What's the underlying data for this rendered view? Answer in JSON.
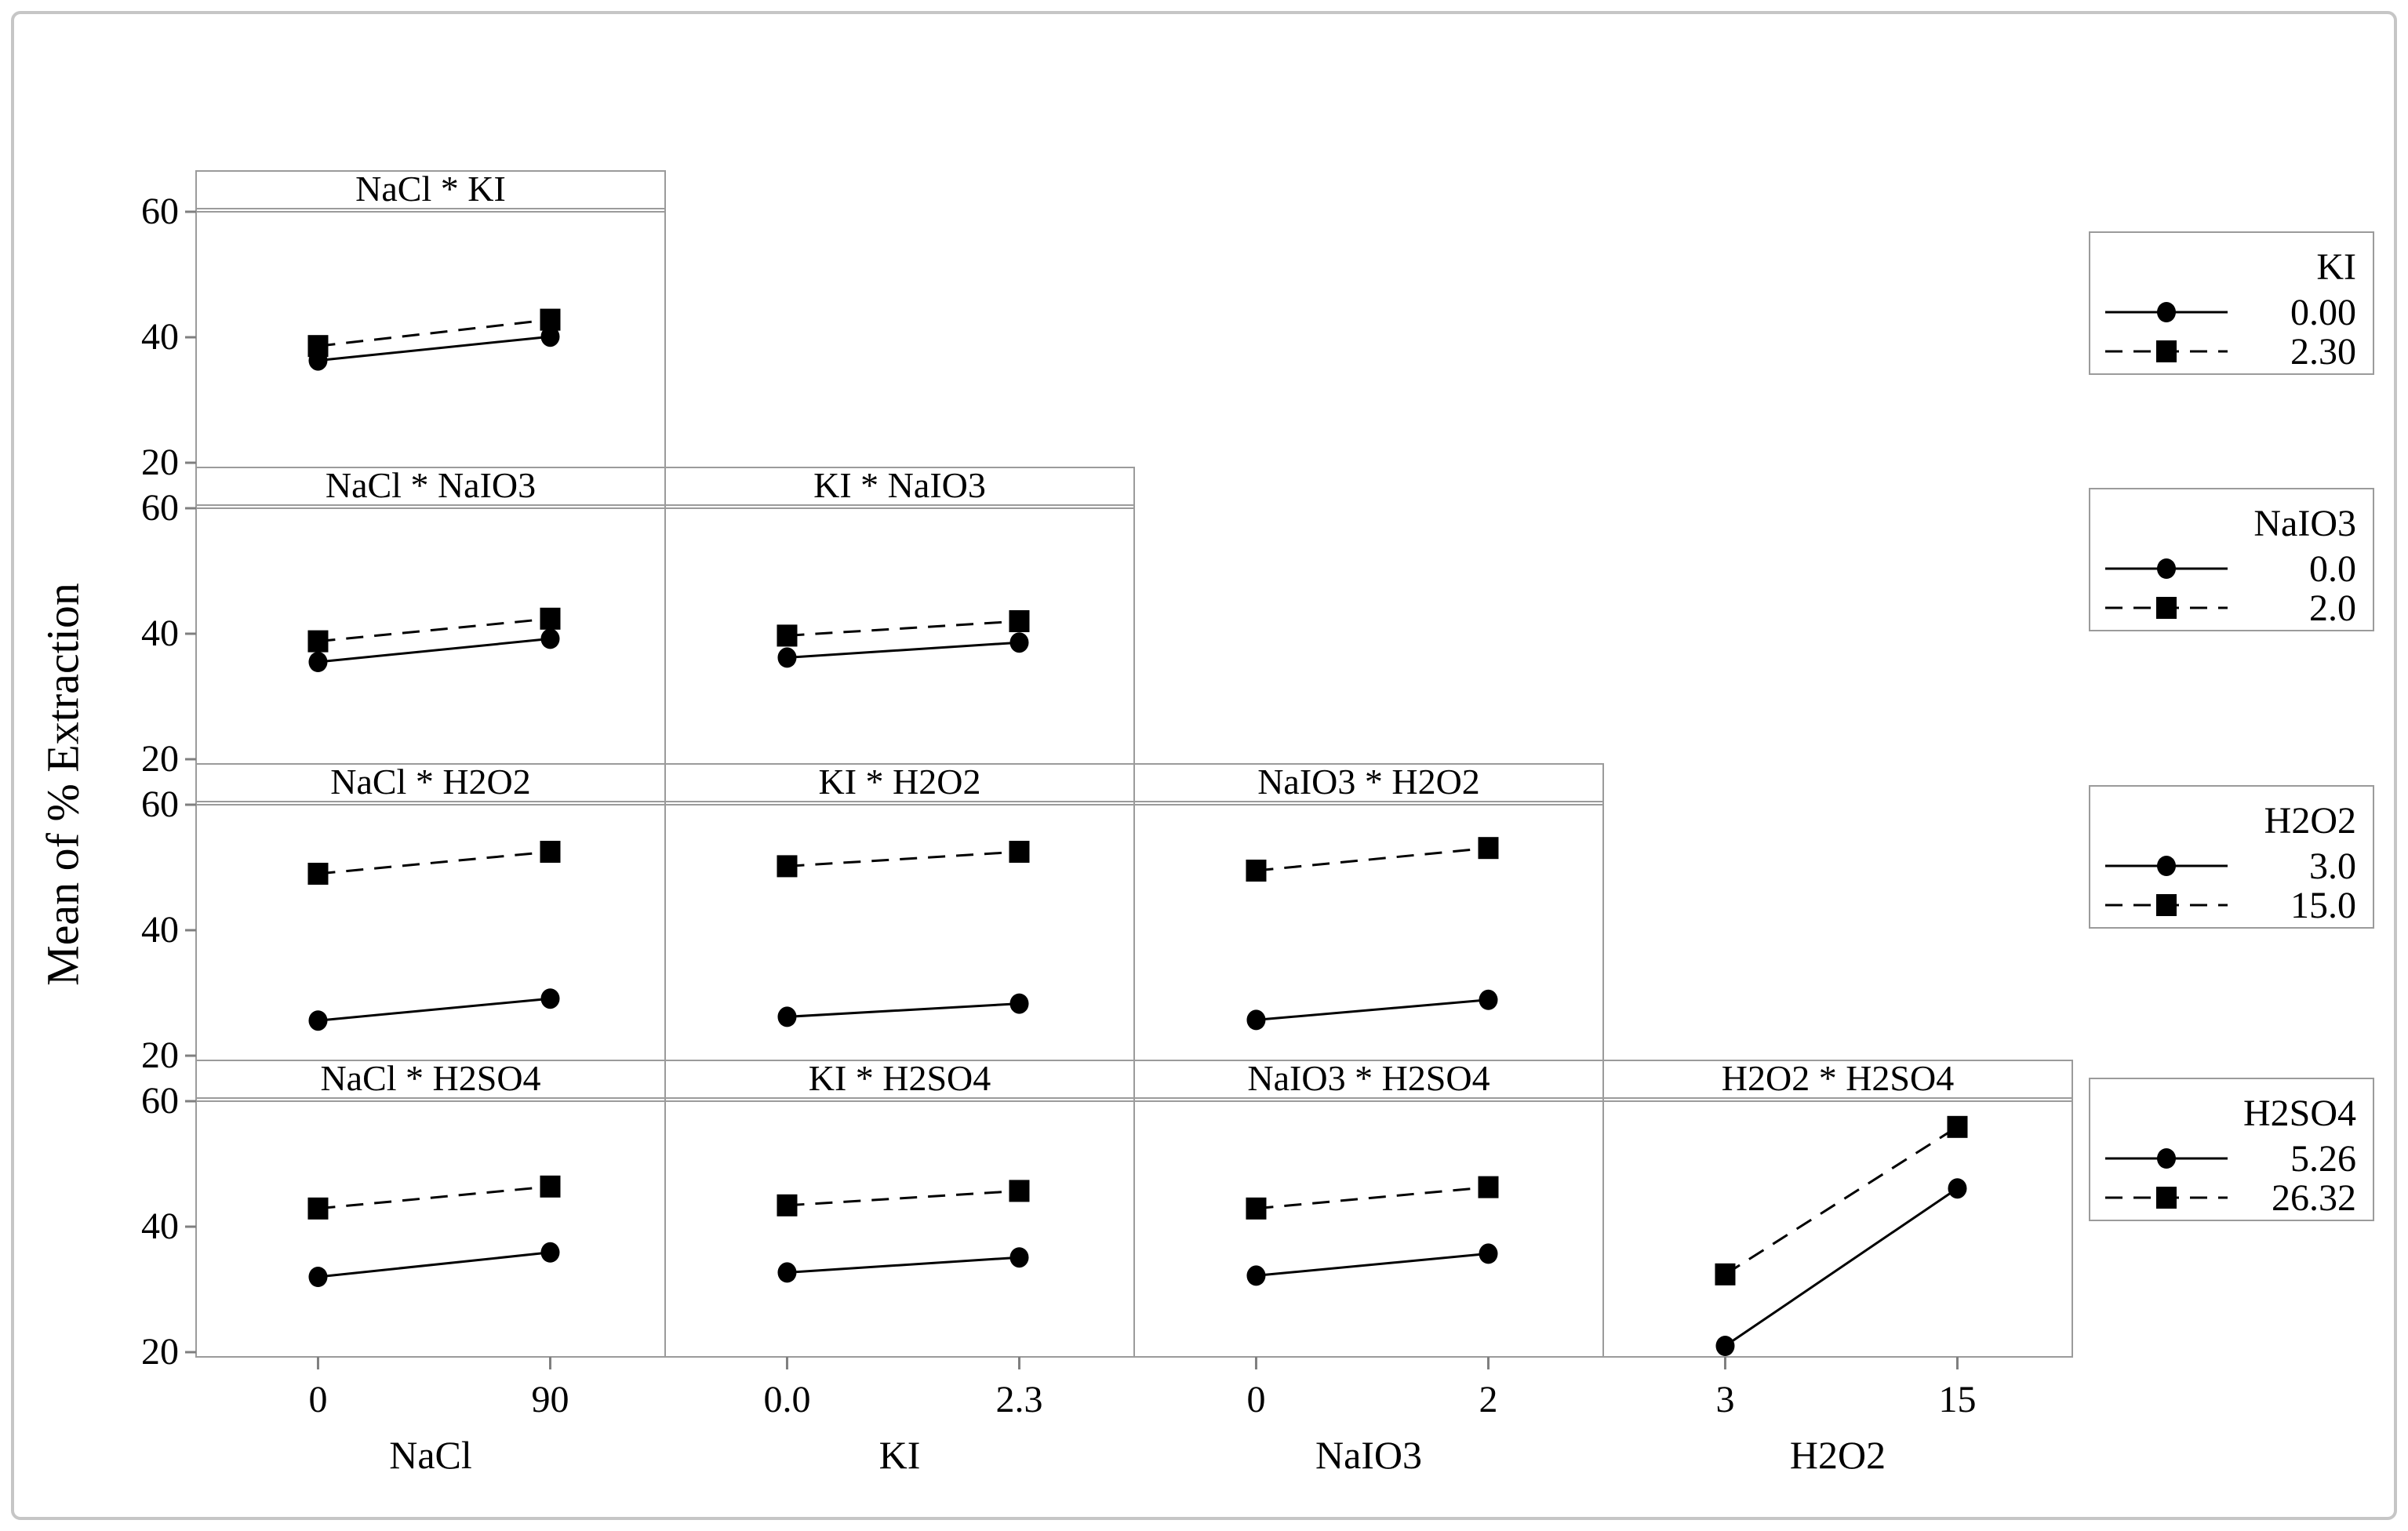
{
  "figure": {
    "ylabel": "Mean of % Extraction",
    "colors": {
      "background": "#ffffff",
      "outer_border": "#c6c6c6",
      "panel_border": "#9b9b9b",
      "tick": "#7f7f7f",
      "data": "#000000"
    }
  },
  "chart_data": {
    "type": "line",
    "subtype": "interaction-plot-matrix",
    "title": "",
    "ylabel": "Mean of % Extraction",
    "ylim": [
      20,
      60
    ],
    "yticks": [
      "60",
      "40",
      "20"
    ],
    "ytick_values": [
      60,
      40,
      20
    ],
    "grid": "lower-triangle-matrix",
    "legend_position": "right",
    "x_factors": [
      {
        "name": "NaCl",
        "tick_labels": [
          "0",
          "90"
        ]
      },
      {
        "name": "KI",
        "tick_labels": [
          "0.0",
          "2.3"
        ]
      },
      {
        "name": "NaIO3",
        "tick_labels": [
          "0",
          "2"
        ]
      },
      {
        "name": "H2O2",
        "tick_labels": [
          "3",
          "15"
        ]
      }
    ],
    "series_styles": [
      {
        "id": "solid",
        "line": "solid",
        "marker": "circle"
      },
      {
        "id": "dashed",
        "line": "dashed",
        "marker": "square"
      }
    ],
    "panels": [
      {
        "row": 0,
        "col": 0,
        "title": "NaCl * KI",
        "series": [
          {
            "style": "solid",
            "trace_level": "0.00",
            "values": [
              36.3,
              40.1
            ]
          },
          {
            "style": "dashed",
            "trace_level": "2.30",
            "values": [
              38.6,
              42.8
            ]
          }
        ]
      },
      {
        "row": 1,
        "col": 0,
        "title": "NaCl * NaIO3",
        "series": [
          {
            "style": "solid",
            "trace_level": "0.0",
            "values": [
              35.5,
              39.2
            ]
          },
          {
            "style": "dashed",
            "trace_level": "2.0",
            "values": [
              38.8,
              42.4
            ]
          }
        ]
      },
      {
        "row": 1,
        "col": 1,
        "title": "KI * NaIO3",
        "series": [
          {
            "style": "solid",
            "trace_level": "0.0",
            "values": [
              36.2,
              38.6
            ]
          },
          {
            "style": "dashed",
            "trace_level": "2.0",
            "values": [
              39.7,
              42.0
            ]
          }
        ]
      },
      {
        "row": 2,
        "col": 0,
        "title": "NaCl * H2O2",
        "series": [
          {
            "style": "solid",
            "trace_level": "3.0",
            "values": [
              25.6,
              29.1
            ]
          },
          {
            "style": "dashed",
            "trace_level": "15.0",
            "values": [
              49.0,
              52.5
            ]
          }
        ]
      },
      {
        "row": 2,
        "col": 1,
        "title": "KI * H2O2",
        "series": [
          {
            "style": "solid",
            "trace_level": "3.0",
            "values": [
              26.2,
              28.3
            ]
          },
          {
            "style": "dashed",
            "trace_level": "15.0",
            "values": [
              50.2,
              52.5
            ]
          }
        ]
      },
      {
        "row": 2,
        "col": 2,
        "title": "NaIO3 * H2O2",
        "series": [
          {
            "style": "solid",
            "trace_level": "3.0",
            "values": [
              25.7,
              28.9
            ]
          },
          {
            "style": "dashed",
            "trace_level": "15.0",
            "values": [
              49.5,
              53.1
            ]
          }
        ]
      },
      {
        "row": 3,
        "col": 0,
        "title": "NaCl * H2SO4",
        "series": [
          {
            "style": "solid",
            "trace_level": "5.26",
            "values": [
              32.0,
              35.9
            ]
          },
          {
            "style": "dashed",
            "trace_level": "26.32",
            "values": [
              42.9,
              46.4
            ]
          }
        ]
      },
      {
        "row": 3,
        "col": 1,
        "title": "KI * H2SO4",
        "series": [
          {
            "style": "solid",
            "trace_level": "5.26",
            "values": [
              32.7,
              35.1
            ]
          },
          {
            "style": "dashed",
            "trace_level": "26.32",
            "values": [
              43.4,
              45.7
            ]
          }
        ]
      },
      {
        "row": 3,
        "col": 2,
        "title": "NaIO3 * H2SO4",
        "series": [
          {
            "style": "solid",
            "trace_level": "5.26",
            "values": [
              32.2,
              35.7
            ]
          },
          {
            "style": "dashed",
            "trace_level": "26.32",
            "values": [
              42.9,
              46.3
            ]
          }
        ]
      },
      {
        "row": 3,
        "col": 3,
        "title": "H2O2 * H2SO4",
        "series": [
          {
            "style": "solid",
            "trace_level": "5.26",
            "values": [
              21.0,
              46.1
            ]
          },
          {
            "style": "dashed",
            "trace_level": "26.32",
            "values": [
              32.4,
              55.9
            ]
          }
        ]
      }
    ],
    "legends": [
      {
        "title": "KI",
        "entries": [
          {
            "style": "solid",
            "label": "0.00"
          },
          {
            "style": "dashed",
            "label": "2.30"
          }
        ]
      },
      {
        "title": "NaIO3",
        "entries": [
          {
            "style": "solid",
            "label": "0.0"
          },
          {
            "style": "dashed",
            "label": "2.0"
          }
        ]
      },
      {
        "title": "H2O2",
        "entries": [
          {
            "style": "solid",
            "label": "3.0"
          },
          {
            "style": "dashed",
            "label": "15.0"
          }
        ]
      },
      {
        "title": "H2SO4",
        "entries": [
          {
            "style": "solid",
            "label": "5.26"
          },
          {
            "style": "dashed",
            "label": "26.32"
          }
        ]
      }
    ]
  }
}
